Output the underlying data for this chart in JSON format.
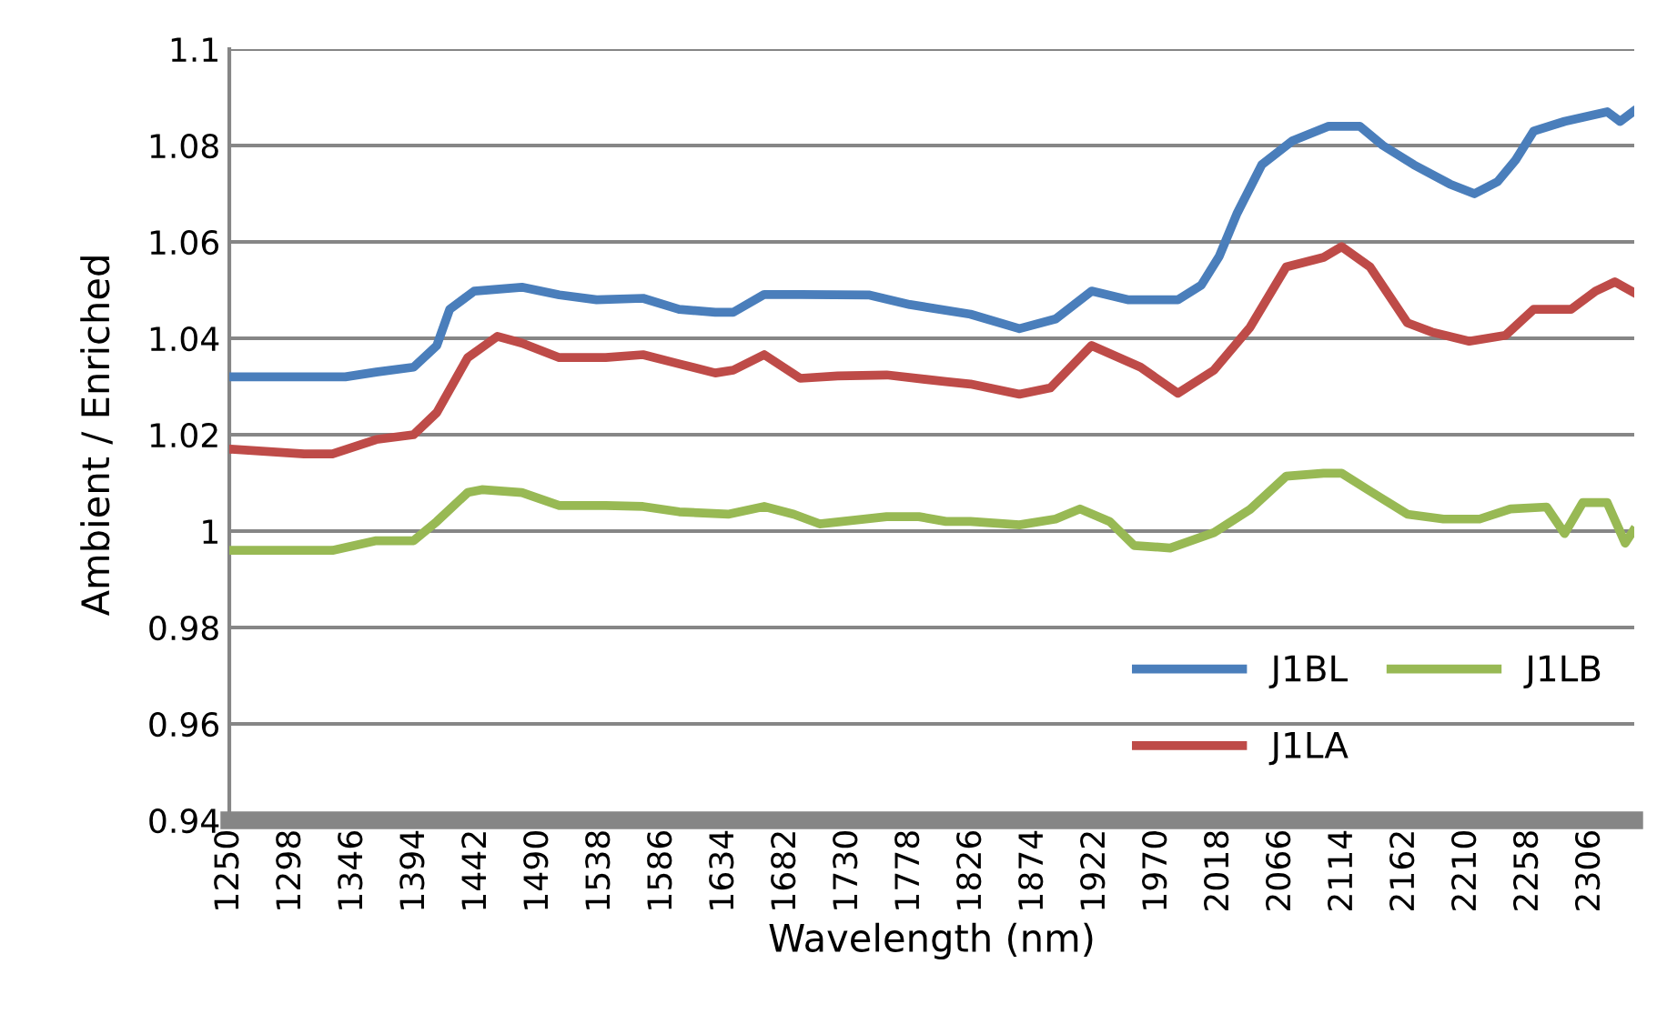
{
  "chart_data": {
    "type": "line",
    "xlabel": "Wavelength (nm)",
    "ylabel": "Ambient / Enriched",
    "xlim": [
      1250,
      2340
    ],
    "xticks": [
      1250,
      1298,
      1346,
      1394,
      1442,
      1490,
      1538,
      1586,
      1634,
      1682,
      1730,
      1778,
      1826,
      1874,
      1922,
      1970,
      2018,
      2066,
      2114,
      2162,
      2210,
      2258,
      2306
    ],
    "ylim": [
      0.94,
      1.1
    ],
    "yticks": [
      {
        "value": 0.94,
        "label": "0.94"
      },
      {
        "value": 0.96,
        "label": "0.96"
      },
      {
        "value": 0.98,
        "label": "0.98"
      },
      {
        "value": 1,
        "label": "1"
      },
      {
        "value": 1.02,
        "label": "1.02"
      },
      {
        "value": 1.04,
        "label": "1.04"
      },
      {
        "value": 1.06,
        "label": "1.06"
      },
      {
        "value": 1.08,
        "label": "1.08"
      },
      {
        "value": 1.1,
        "label": "1.1"
      }
    ],
    "grid": "y",
    "legend": "bottom right",
    "marker": "none",
    "line_style": "solid",
    "series": [
      {
        "name": "J1BL",
        "color": "#4a7ebb",
        "x": [
          1251,
          1308,
          1340,
          1364,
          1393,
          1411,
          1421,
          1440,
          1477,
          1506,
          1535,
          1571,
          1599,
          1627,
          1641,
          1665,
          1693,
          1746,
          1778,
          1825,
          1863,
          1891,
          1919,
          1947,
          1986,
          2004,
          2018,
          2032,
          2051,
          2075,
          2103,
          2127,
          2145,
          2169,
          2197,
          2216,
          2234,
          2248,
          2262,
          2286,
          2319,
          2329,
          2339
        ],
        "values": [
          1.032,
          1.032,
          1.032,
          1.033,
          1.034,
          1.0385,
          1.046,
          1.0498,
          1.0506,
          1.049,
          1.048,
          1.0483,
          1.046,
          1.0454,
          1.0454,
          1.0491,
          1.0491,
          1.049,
          1.047,
          1.045,
          1.042,
          1.044,
          1.0498,
          1.048,
          1.048,
          1.051,
          1.057,
          1.066,
          1.076,
          1.081,
          1.084,
          1.084,
          1.08,
          1.076,
          1.072,
          1.07,
          1.0725,
          1.077,
          1.083,
          1.085,
          1.087,
          1.085,
          1.087
        ]
      },
      {
        "name": "J1LA",
        "color": "#be4b48",
        "x": [
          1251,
          1308,
          1330,
          1364,
          1393,
          1411,
          1435,
          1458,
          1477,
          1506,
          1542,
          1571,
          1599,
          1627,
          1641,
          1665,
          1693,
          1722,
          1760,
          1806,
          1825,
          1863,
          1887,
          1919,
          1957,
          1986,
          2014,
          2042,
          2070,
          2099,
          2113,
          2135,
          2164,
          2183,
          2212,
          2240,
          2262,
          2291,
          2310,
          2325,
          2339
        ],
        "values": [
          1.017,
          1.016,
          1.016,
          1.019,
          1.02,
          1.0246,
          1.036,
          1.0404,
          1.039,
          1.036,
          1.036,
          1.0366,
          1.0347,
          1.0328,
          1.0334,
          1.0366,
          1.0317,
          1.0322,
          1.0324,
          1.031,
          1.0305,
          1.0284,
          1.0297,
          1.0385,
          1.034,
          1.0286,
          1.0334,
          1.0423,
          1.0548,
          1.0568,
          1.059,
          1.0548,
          1.0432,
          1.0413,
          1.0394,
          1.0406,
          1.046,
          1.046,
          1.0498,
          1.0517,
          1.0496
        ]
      },
      {
        "name": "J1LB",
        "color": "#98b954",
        "x": [
          1251,
          1308,
          1330,
          1364,
          1393,
          1411,
          1435,
          1446,
          1477,
          1506,
          1542,
          1571,
          1599,
          1637,
          1665,
          1688,
          1708,
          1760,
          1785,
          1806,
          1825,
          1863,
          1891,
          1910,
          1933,
          1952,
          1980,
          2014,
          2042,
          2070,
          2099,
          2113,
          2135,
          2164,
          2192,
          2220,
          2244,
          2272,
          2286,
          2300,
          2319,
          2333,
          2339
        ],
        "values": [
          0.996,
          0.996,
          0.996,
          0.998,
          0.998,
          1.002,
          1.008,
          1.0086,
          1.008,
          1.0053,
          1.0053,
          1.0051,
          1.004,
          1.0035,
          1.0051,
          1.0035,
          1.0015,
          1.003,
          1.003,
          1.002,
          1.002,
          1.0013,
          1.0025,
          1.0046,
          1.002,
          0.997,
          0.9965,
          0.9997,
          1.0045,
          1.0114,
          1.012,
          1.012,
          1.0083,
          1.0035,
          1.0025,
          1.0025,
          1.0046,
          1.005,
          0.9995,
          1.0059,
          1.0059,
          0.9975,
          1.0
        ]
      }
    ]
  }
}
